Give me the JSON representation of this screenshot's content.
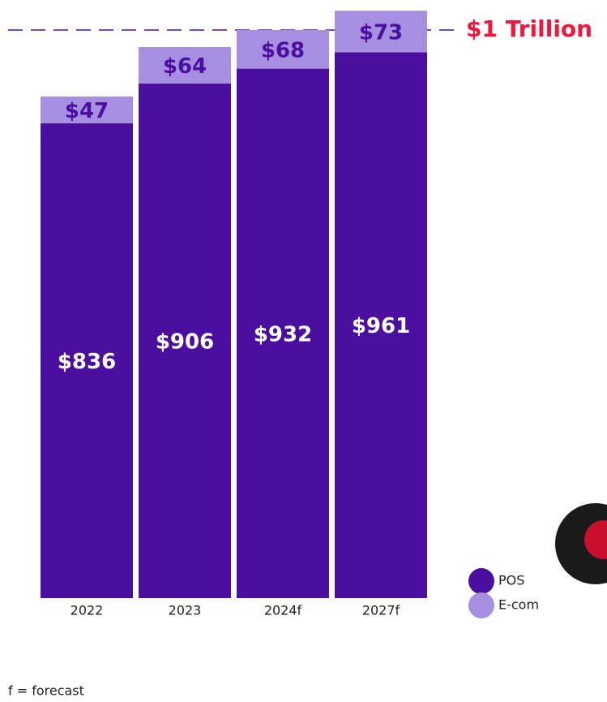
{
  "chart_data": {
    "type": "stacked_bar",
    "categories": [
      "2022",
      "2023",
      "2024f",
      "2027f"
    ],
    "series": [
      {
        "name": "POS",
        "color": "#4a0f9e",
        "values": [
          836,
          906,
          932,
          961
        ],
        "value_labels": [
          "$836",
          "$906",
          "$932",
          "$961"
        ],
        "label_color": "#ffffff"
      },
      {
        "name": "E-com",
        "color": "#a68ee0",
        "values": [
          47,
          64,
          68,
          73
        ],
        "value_labels": [
          "$47",
          "$64",
          "$68",
          "$73"
        ],
        "label_color": "#4a0f9e"
      }
    ],
    "ylim": [
      0,
      1050
    ],
    "reference_line": {
      "value": 1000,
      "label": "$1 Trillion",
      "color": "#f0163c"
    },
    "footnote": "f = forecast"
  }
}
